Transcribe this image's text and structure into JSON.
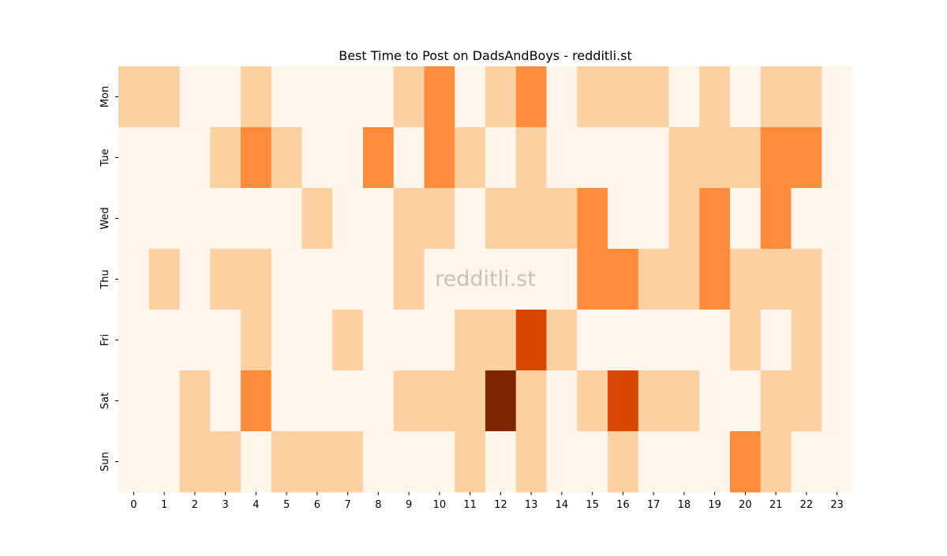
{
  "chart_data": {
    "type": "heatmap",
    "title": "Best Time to Post on DadsAndBoys - redditli.st",
    "watermark": "redditli.st",
    "x_categories": [
      "0",
      "1",
      "2",
      "3",
      "4",
      "5",
      "6",
      "7",
      "8",
      "9",
      "10",
      "11",
      "12",
      "13",
      "14",
      "15",
      "16",
      "17",
      "18",
      "19",
      "20",
      "21",
      "22",
      "23"
    ],
    "y_categories": [
      "Mon",
      "Tue",
      "Wed",
      "Thu",
      "Fri",
      "Sat",
      "Sun"
    ],
    "values": [
      [
        1,
        1,
        0,
        0,
        1,
        0,
        0,
        0,
        0,
        1,
        2,
        0,
        1,
        2,
        0,
        1,
        1,
        1,
        0,
        1,
        0,
        1,
        1,
        0
      ],
      [
        0,
        0,
        0,
        1,
        2,
        1,
        0,
        0,
        2,
        0,
        2,
        1,
        0,
        1,
        0,
        0,
        0,
        0,
        1,
        1,
        1,
        2,
        2,
        0
      ],
      [
        0,
        0,
        0,
        0,
        0,
        0,
        1,
        0,
        0,
        1,
        1,
        0,
        1,
        1,
        1,
        2,
        0,
        0,
        1,
        2,
        0,
        2,
        0,
        0
      ],
      [
        0,
        1,
        0,
        1,
        1,
        0,
        0,
        0,
        0,
        1,
        0,
        0,
        0,
        0,
        0,
        2,
        2,
        1,
        1,
        2,
        1,
        1,
        1,
        0
      ],
      [
        0,
        0,
        0,
        0,
        1,
        0,
        0,
        1,
        0,
        0,
        0,
        1,
        1,
        3,
        1,
        0,
        0,
        0,
        0,
        0,
        1,
        0,
        1,
        0
      ],
      [
        0,
        0,
        1,
        0,
        2,
        0,
        0,
        0,
        0,
        1,
        1,
        1,
        4,
        1,
        0,
        1,
        3,
        1,
        1,
        0,
        0,
        1,
        1,
        0
      ],
      [
        0,
        0,
        1,
        1,
        0,
        1,
        1,
        1,
        0,
        0,
        0,
        1,
        0,
        1,
        0,
        0,
        1,
        0,
        0,
        0,
        2,
        1,
        0,
        0
      ]
    ],
    "zlim": [
      0,
      4
    ],
    "colormap": [
      "#fff5eb",
      "#fdd0a2",
      "#fd8d3c",
      "#d94801",
      "#7f2704"
    ]
  }
}
